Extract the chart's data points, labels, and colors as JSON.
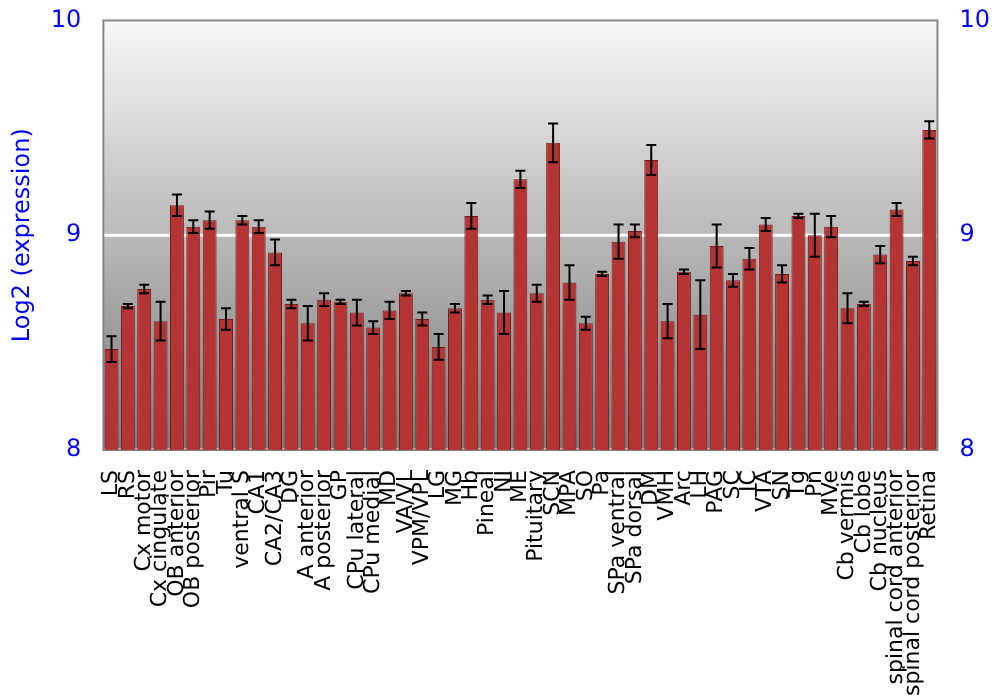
{
  "chart_data": {
    "type": "bar",
    "ylabel": "Log2 (expression)",
    "categories": [
      "LS",
      "RS",
      "Cx motor",
      "Cx cingulate",
      "OB anterior",
      "OB posterior",
      "Pir",
      "Tu",
      "ventral S",
      "CA1",
      "CA2/CA3",
      "DG",
      "A anterior",
      "A posterior",
      "GP",
      "CPu lateral",
      "CPu medial",
      "MD",
      "VA/VL",
      "VPM/VPL",
      "LG",
      "MG",
      "Hb",
      "Pineal",
      "NI",
      "ME",
      "Pituitary",
      "SCN",
      "MPA",
      "SO",
      "Pa",
      "SPa ventral",
      "SPa dorsal",
      "DM",
      "VMH",
      "Arc",
      "LH",
      "PAG",
      "SC",
      "IC",
      "VTA",
      "SN",
      "Tg",
      "Pn",
      "MVe",
      "Cb vermis",
      "Cb lobe",
      "Cb nucleus",
      "spinal cord anterior",
      "spinal cord posterior",
      "Retina"
    ],
    "values": [
      8.47,
      8.67,
      8.75,
      8.6,
      9.14,
      9.04,
      9.07,
      8.61,
      9.07,
      9.04,
      8.92,
      8.68,
      8.59,
      8.7,
      8.69,
      8.64,
      8.57,
      8.65,
      8.73,
      8.61,
      8.48,
      8.66,
      9.09,
      8.7,
      8.64,
      9.26,
      8.73,
      9.43,
      8.78,
      8.59,
      8.82,
      8.97,
      9.02,
      9.35,
      8.6,
      8.83,
      8.63,
      8.95,
      8.79,
      8.89,
      9.05,
      8.82,
      9.09,
      9.0,
      9.04,
      8.66,
      8.68,
      8.91,
      9.12,
      8.88,
      9.49
    ],
    "errors": [
      0.06,
      0.01,
      0.02,
      0.09,
      0.05,
      0.03,
      0.04,
      0.05,
      0.02,
      0.03,
      0.06,
      0.02,
      0.08,
      0.03,
      0.01,
      0.06,
      0.03,
      0.04,
      0.01,
      0.03,
      0.06,
      0.02,
      0.06,
      0.02,
      0.1,
      0.04,
      0.04,
      0.09,
      0.08,
      0.03,
      0.01,
      0.08,
      0.03,
      0.07,
      0.08,
      0.01,
      0.16,
      0.1,
      0.03,
      0.05,
      0.03,
      0.04,
      0.01,
      0.1,
      0.05,
      0.07,
      0.01,
      0.04,
      0.03,
      0.02,
      0.04
    ],
    "color": "#b43434",
    "ylim": [
      8,
      10
    ],
    "yticks": [
      8,
      9,
      10
    ],
    "y2lim": [
      8,
      10
    ],
    "y2ticks": [
      8,
      9,
      10
    ],
    "grid": "y"
  }
}
